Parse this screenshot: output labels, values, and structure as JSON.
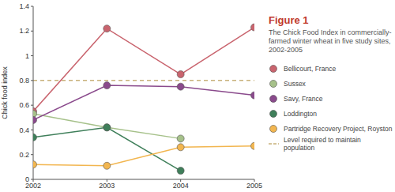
{
  "chart_data": {
    "type": "line",
    "title": "Figure 1",
    "subtitle": "The Chick Food Index in commercially-farmed winter wheat in five study sites, 2002-2005",
    "y_label": "Chick food index",
    "x": [
      2002,
      2003,
      2004,
      2005
    ],
    "xlim": [
      2002,
      2005
    ],
    "xticks": [
      2002,
      2003,
      2004,
      2005
    ],
    "ylim": [
      0,
      1.4
    ],
    "yticks": [
      0,
      0.2,
      0.4,
      0.6,
      0.8,
      1,
      1.2,
      1.4
    ],
    "legend": "right",
    "marker": "circle",
    "series": [
      {
        "name": "Bellicourt, France",
        "color": "#c9646e",
        "values": [
          0.55,
          1.22,
          0.85,
          1.23
        ]
      },
      {
        "name": "Sussex",
        "color": "#a6c18a",
        "values": [
          0.53,
          0.42,
          0.33,
          null
        ]
      },
      {
        "name": "Savy, France",
        "color": "#8a4a8c",
        "values": [
          0.48,
          0.76,
          0.75,
          0.68
        ]
      },
      {
        "name": "Loddington",
        "color": "#3f7f5a",
        "values": [
          0.34,
          0.42,
          0.07,
          null
        ]
      },
      {
        "name": "Partridge Recovery Project, Royston",
        "color": "#f2b650",
        "values": [
          0.12,
          0.11,
          0.26,
          0.27
        ]
      }
    ],
    "reference_line": {
      "value": 0.8,
      "label": "Level required to maintain population",
      "color": "#c8b17a",
      "line_style": "dashed"
    }
  }
}
